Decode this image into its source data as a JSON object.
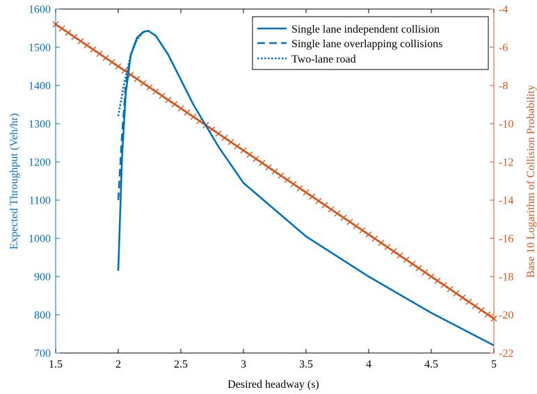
{
  "chart_data": {
    "type": "line",
    "xlabel": "Desired headway (s)",
    "ylabel_left": "Expected Throughput (Veh/hr)",
    "ylabel_right": "Base 10 Logarithm of Collision Probability",
    "xlim": [
      1.5,
      5
    ],
    "ylim_left": [
      700,
      1600
    ],
    "ylim_right": [
      -22,
      -4
    ],
    "x_ticks": [
      "1.5",
      "2",
      "2.5",
      "3",
      "3.5",
      "4",
      "4.5",
      "5"
    ],
    "y_left_ticks": [
      "700",
      "800",
      "900",
      "1000",
      "1100",
      "1200",
      "1300",
      "1400",
      "1500",
      "1600"
    ],
    "y_right_ticks": [
      "-22",
      "-20",
      "-18",
      "-16",
      "-14",
      "-12",
      "-10",
      "-8",
      "-6",
      "-4"
    ],
    "grid": false,
    "legend_position": "top-right",
    "colors": {
      "left_axis": "#0072BD",
      "right_axis": "#D95319",
      "series_throughput": "#0072BD",
      "series_collision": "#D95319"
    },
    "series": [
      {
        "name": "Single lane independent collision",
        "axis": "left",
        "style": "solid",
        "x": [
          2.0,
          2.03,
          2.06,
          2.1,
          2.15,
          2.2,
          2.24,
          2.3,
          2.4,
          2.5,
          2.6,
          2.8,
          3.0,
          3.5,
          4.0,
          4.5,
          5.0
        ],
        "y": [
          915,
          1210,
          1380,
          1480,
          1525,
          1540,
          1543,
          1530,
          1480,
          1415,
          1350,
          1240,
          1145,
          1005,
          900,
          805,
          720
        ]
      },
      {
        "name": "Single lane overlapping collisions",
        "axis": "left",
        "style": "dashed",
        "x": [
          2.0,
          2.03,
          2.06,
          2.1,
          2.15,
          2.2,
          2.24
        ],
        "y": [
          1100,
          1270,
          1400,
          1480,
          1525,
          1540,
          1543
        ]
      },
      {
        "name": "Two-lane road",
        "axis": "left",
        "style": "dotted",
        "x": [
          2.0,
          2.05,
          2.1,
          2.15,
          2.2,
          2.23
        ],
        "y": [
          1320,
          1410,
          1480,
          1520,
          1540,
          1543
        ]
      },
      {
        "name": "",
        "axis": "right",
        "style": "solid-x-markers",
        "x_start": 1.5,
        "x_end": 5.0,
        "x_step": 0.05,
        "y_start": -4.8,
        "y_end": -20.2
      }
    ]
  }
}
